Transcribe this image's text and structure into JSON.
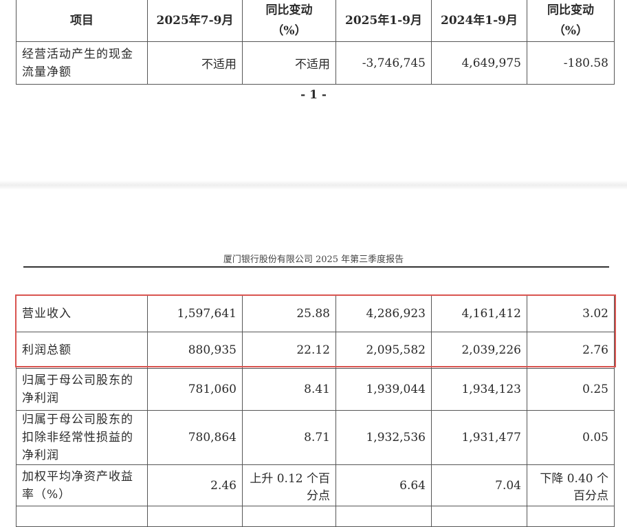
{
  "top_table": {
    "headers": [
      "项目",
      "2025年7-9月",
      "同比变动\n（%）",
      "2025年1-9月",
      "2024年1-9月",
      "同比变动\n（%）"
    ],
    "rows": [
      {
        "label": "经营活动产生的现金流量净额",
        "values": [
          "不适用",
          "不适用",
          "-3,746,745",
          "4,649,975",
          "-180.58"
        ]
      }
    ]
  },
  "page_number": "- 1 -",
  "report_header": "厦门银行股份有限公司 2025 年第三季度报告",
  "highlight_color": "#d9534f",
  "main_table": {
    "rows": [
      {
        "label": "营业收入",
        "values": [
          "1,597,641",
          "25.88",
          "4,286,923",
          "4,161,412",
          "3.02"
        ]
      },
      {
        "label": "利润总额",
        "values": [
          "880,935",
          "22.12",
          "2,095,582",
          "2,039,226",
          "2.76"
        ]
      },
      {
        "label": "归属于母公司股东的净利润",
        "values": [
          "781,060",
          "8.41",
          "1,939,044",
          "1,934,123",
          "0.25"
        ]
      },
      {
        "label": "归属于母公司股东的扣除非经常性损益的净利润",
        "values": [
          "780,864",
          "8.71",
          "1,932,536",
          "1,931,477",
          "0.05"
        ]
      },
      {
        "label": "加权平均净资产收益率（%）",
        "values": [
          "2.46",
          "上升 0.12 个百分点",
          "6.64",
          "7.04",
          "下降 0.40 个百分点"
        ]
      }
    ]
  }
}
